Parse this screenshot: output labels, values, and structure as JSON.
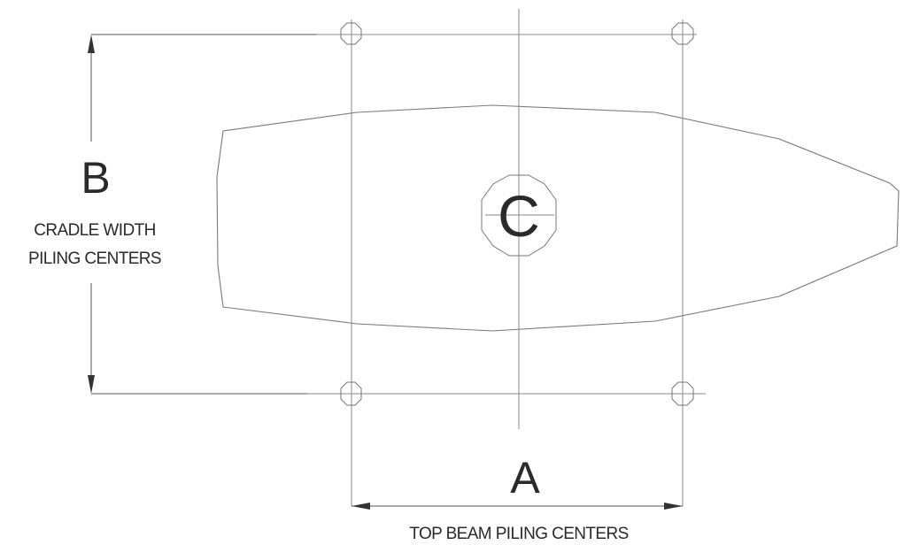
{
  "labels": {
    "a_letter": "A",
    "a_caption": "TOP BEAM PILING CENTERS",
    "b_letter": "B",
    "b_caption_line1": "CRADLE WIDTH",
    "b_caption_line2": "PILING CENTERS",
    "c_letter": "C"
  },
  "colors": {
    "line": "#8a8a8a",
    "text": "#2a2a2a",
    "arrow": "#333333"
  }
}
